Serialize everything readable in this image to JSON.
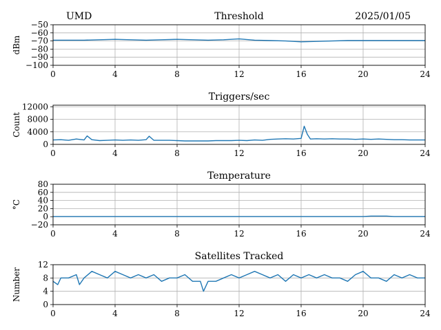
{
  "header": {
    "site": "UMD",
    "date": "2025/01/05"
  },
  "colors": {
    "series": "#1f77b4",
    "grid": "#b0b0b0"
  },
  "chart_data": [
    {
      "type": "line",
      "title": "Threshold",
      "xlabel": "",
      "ylabel": "dBm",
      "xlim": [
        0,
        24
      ],
      "ylim": [
        -100,
        -50
      ],
      "x_ticks": [
        "0",
        "4",
        "8",
        "12",
        "16",
        "20",
        "24"
      ],
      "y_ticks": [
        "−50",
        "−60",
        "−70",
        "−80",
        "−90",
        "−100"
      ],
      "y_tick_values": [
        -50,
        -60,
        -70,
        -80,
        -90,
        -100
      ],
      "grid": true,
      "x": [
        0,
        1,
        2,
        3,
        4,
        5,
        6,
        7,
        8,
        9,
        10,
        11,
        12,
        13,
        14,
        15,
        16,
        17,
        18,
        19,
        20,
        21,
        22,
        23,
        24
      ],
      "values": [
        -69,
        -69,
        -69,
        -68.5,
        -68,
        -68.5,
        -69,
        -68.5,
        -68,
        -68.5,
        -69,
        -68.5,
        -67.5,
        -69,
        -69.5,
        -70,
        -71,
        -70.5,
        -70,
        -69.5,
        -69.5,
        -69.5,
        -69.5,
        -69.5,
        -69.5
      ]
    },
    {
      "type": "line",
      "title": "Triggers/sec",
      "xlabel": "",
      "ylabel": "Count",
      "xlim": [
        0,
        24
      ],
      "ylim": [
        0,
        12500
      ],
      "x_ticks": [
        "0",
        "4",
        "8",
        "12",
        "16",
        "20",
        "24"
      ],
      "y_ticks": [
        "0",
        "4000",
        "8000",
        "12000"
      ],
      "y_tick_values": [
        0,
        4000,
        8000,
        12000
      ],
      "grid": true,
      "x": [
        0,
        0.5,
        1,
        1.5,
        2,
        2.2,
        2.5,
        3,
        3.5,
        4,
        4.5,
        5,
        5.5,
        6,
        6.2,
        6.5,
        7,
        7.5,
        8,
        8.5,
        9,
        9.5,
        10,
        10.5,
        11,
        11.5,
        12,
        12.5,
        13,
        13.5,
        14,
        14.5,
        15,
        15.5,
        16,
        16.2,
        16.4,
        16.6,
        17,
        17.5,
        18,
        18.5,
        19,
        19.5,
        20,
        20.5,
        21,
        21.5,
        22,
        22.5,
        23,
        23.5,
        24
      ],
      "values": [
        1400,
        1500,
        1300,
        1700,
        1400,
        2700,
        1500,
        1200,
        1300,
        1400,
        1300,
        1400,
        1300,
        1500,
        2600,
        1300,
        1300,
        1300,
        1200,
        1100,
        1100,
        1100,
        1100,
        1200,
        1200,
        1200,
        1300,
        1200,
        1400,
        1300,
        1600,
        1700,
        1800,
        1700,
        1900,
        5800,
        3200,
        1700,
        1800,
        1700,
        1800,
        1700,
        1700,
        1600,
        1700,
        1600,
        1700,
        1600,
        1500,
        1500,
        1400,
        1400,
        1400
      ]
    },
    {
      "type": "line",
      "title": "Temperature",
      "xlabel": "",
      "ylabel": "°C",
      "xlim": [
        0,
        24
      ],
      "ylim": [
        -20,
        80
      ],
      "x_ticks": [
        "0",
        "4",
        "8",
        "12",
        "16",
        "20",
        "24"
      ],
      "y_ticks": [
        "−20",
        "0",
        "20",
        "40",
        "60",
        "80"
      ],
      "y_tick_values": [
        -20,
        0,
        20,
        40,
        60,
        80
      ],
      "grid": true,
      "x": [
        0,
        4,
        8,
        12,
        16,
        20,
        20.5,
        21,
        21.5,
        22,
        24
      ],
      "values": [
        0.5,
        0.5,
        0.5,
        0.5,
        0.5,
        0.5,
        1.5,
        1.5,
        1.5,
        0.5,
        0.5
      ]
    },
    {
      "type": "line",
      "title": "Satellites Tracked",
      "xlabel": "",
      "ylabel": "Number",
      "xlim": [
        0,
        24
      ],
      "ylim": [
        0,
        12
      ],
      "x_ticks": [
        "0",
        "4",
        "8",
        "12",
        "16",
        "20",
        "24"
      ],
      "y_ticks": [
        "0",
        "4",
        "8",
        "12"
      ],
      "y_tick_values": [
        0,
        4,
        8,
        12
      ],
      "grid": true,
      "x": [
        0,
        0.3,
        0.5,
        1,
        1.5,
        1.7,
        2,
        2.5,
        3,
        3.5,
        4,
        4.5,
        5,
        5.5,
        6,
        6.5,
        7,
        7.5,
        8,
        8.5,
        9,
        9.5,
        9.7,
        10,
        10.5,
        11,
        11.5,
        12,
        12.5,
        13,
        13.5,
        14,
        14.5,
        15,
        15.5,
        16,
        16.5,
        17,
        17.5,
        18,
        18.5,
        19,
        19.5,
        20,
        20.5,
        21,
        21.5,
        22,
        22.5,
        23,
        23.5,
        24
      ],
      "values": [
        7,
        6,
        8,
        8,
        9,
        6,
        8,
        10,
        9,
        8,
        10,
        9,
        8,
        9,
        8,
        9,
        7,
        8,
        8,
        9,
        7,
        7,
        4,
        7,
        7,
        8,
        9,
        8,
        9,
        10,
        9,
        8,
        9,
        7,
        9,
        8,
        9,
        8,
        9,
        8,
        8,
        7,
        9,
        10,
        8,
        8,
        7,
        9,
        8,
        9,
        8,
        8
      ]
    }
  ]
}
